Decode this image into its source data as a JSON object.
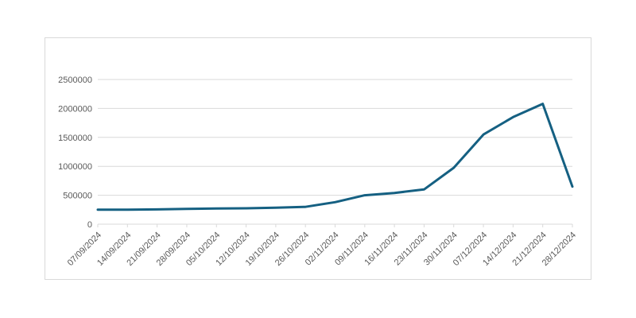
{
  "window": {
    "background": "#ffffff"
  },
  "chart_data": {
    "type": "line",
    "title": "",
    "categories": [
      "07/09/2024",
      "14/09/2024",
      "21/09/2024",
      "28/09/2024",
      "05/10/2024",
      "12/10/2024",
      "19/10/2024",
      "26/10/2024",
      "02/11/2024",
      "09/11/2024",
      "16/11/2024",
      "23/11/2024",
      "30/11/2024",
      "07/12/2024",
      "14/12/2024",
      "21/12/2024",
      "28/12/2024"
    ],
    "values": [
      250000,
      250000,
      255000,
      265000,
      270000,
      275000,
      285000,
      300000,
      380000,
      500000,
      540000,
      600000,
      975000,
      1550000,
      1850000,
      2080000,
      650000
    ],
    "xlabel": "",
    "ylabel": "",
    "ylim": [
      0,
      2500000
    ],
    "y_ticks": [
      0,
      500000,
      1000000,
      1500000,
      2000000,
      2500000
    ],
    "y_tick_labels": [
      "0",
      "500000",
      "1000000",
      "1500000",
      "2000000",
      "2500000"
    ],
    "grid": "horizontal",
    "legend": "none",
    "x_label_rotation_deg": 45
  },
  "colors": {
    "line": "#156082",
    "gridline": "#d9d9d9",
    "axis": "#d9d9d9",
    "tick_mark": "#d9d9d9",
    "tick_label": "#595959",
    "card_border": "#d9d9d9",
    "background": "#ffffff"
  }
}
